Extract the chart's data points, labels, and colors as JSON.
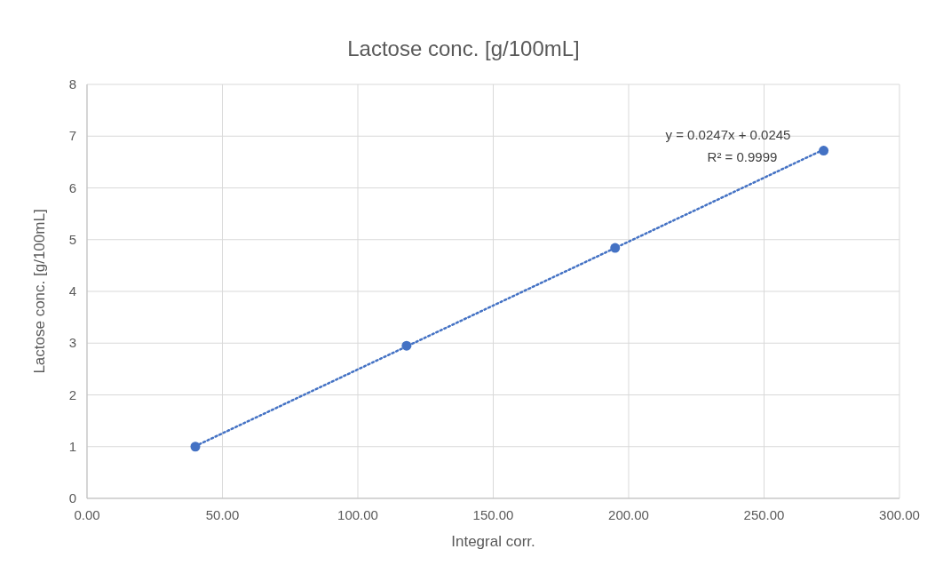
{
  "chart_data": {
    "type": "scatter",
    "title": "Lactose conc. [g/100mL]",
    "xlabel": "Integral corr.",
    "ylabel": "Lactose conc. [g/100mL]",
    "x": [
      40,
      118,
      195,
      272
    ],
    "series": [
      {
        "color": "#4472c4",
        "values": [
          1.0,
          2.95,
          4.84,
          6.72
        ],
        "marker": "circle"
      },
      {
        "type": "line",
        "color": "#4472c4",
        "x": [
          40,
          272
        ],
        "values": [
          1.01,
          6.74
        ],
        "line_style": "dotted",
        "marker": "none"
      }
    ],
    "xlim": [
      0,
      300
    ],
    "xticks": [
      {
        "value": 0,
        "label": "0.00"
      },
      {
        "value": 50,
        "label": "50.00"
      },
      {
        "value": 100,
        "label": "100.00"
      },
      {
        "value": 150,
        "label": "150.00"
      },
      {
        "value": 200,
        "label": "200.00"
      },
      {
        "value": 250,
        "label": "250.00"
      },
      {
        "value": 300,
        "label": "300.00"
      }
    ],
    "ylim": [
      0,
      8
    ],
    "yticks": [
      0,
      1,
      2,
      3,
      4,
      5,
      6,
      7,
      8
    ],
    "grid": true,
    "annotations": [
      "y = 0.0247x + 0.0245",
      "R² = 0.9999"
    ]
  }
}
